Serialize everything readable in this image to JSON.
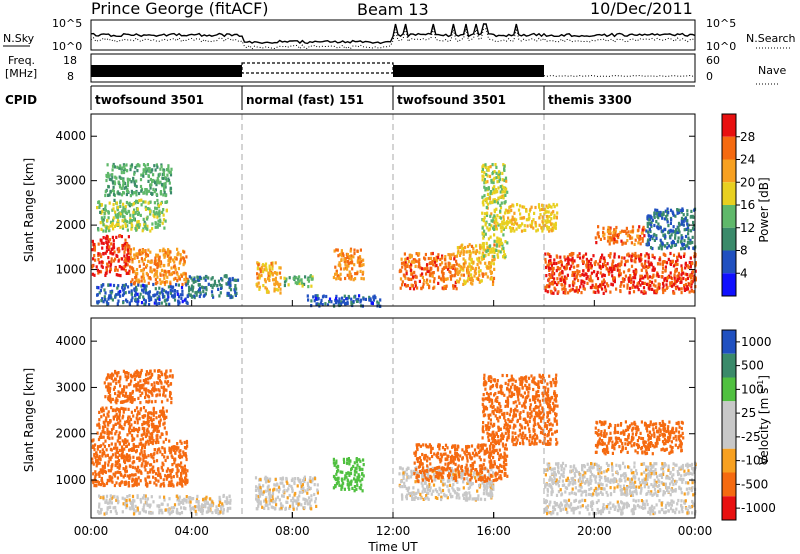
{
  "header": {
    "title": "Prince George (fitACF)",
    "beam": "Beam 13",
    "date": "10/Dec/2011"
  },
  "summary": {
    "nsky_label": "N.Sky",
    "nsearch_label": "N.Search",
    "freq_label_top": "Freq.",
    "freq_label_bottom": "[MHz]",
    "nave_label": "Nave",
    "cpid_label": "CPID",
    "nsky_ticks": [
      "10^5",
      "10^0"
    ],
    "nsearch_ticks": [
      "10^5",
      "10^0"
    ],
    "freq_ticks": [
      "18",
      "8"
    ],
    "nave_ticks": [
      "60",
      "0"
    ]
  },
  "cpid_segments": [
    {
      "label": "twofsound 3501",
      "start_hr": 0,
      "end_hr": 6
    },
    {
      "label": "normal (fast) 151",
      "start_hr": 6,
      "end_hr": 12
    },
    {
      "label": "twofsound 3501",
      "start_hr": 12,
      "end_hr": 18
    },
    {
      "label": "themis 3300",
      "start_hr": 18,
      "end_hr": 24
    }
  ],
  "colors": {
    "power_scale": [
      "#1010ff",
      "#2050c0",
      "#3a8a6a",
      "#5fb86a",
      "#e8d020",
      "#f7a020",
      "#f56a10",
      "#e81010"
    ],
    "velocity_scale": [
      "#e81010",
      "#f56a10",
      "#f7a020",
      "#c8c8c8",
      "#c8c8c8",
      "#50c040",
      "#3a8a6a",
      "#2050c0"
    ]
  },
  "chart_data": [
    {
      "type": "heatmap",
      "title": "",
      "xlabel": "",
      "ylabel": "Slant Range [km]",
      "xlim": [
        0,
        24
      ],
      "ylim": [
        180,
        4500
      ],
      "yticks": [
        "1000",
        "2000",
        "3000",
        "4000"
      ],
      "colorbar": {
        "label": "Power [dB]",
        "ticks": [
          "4",
          "8",
          "12",
          "16",
          "20",
          "24",
          "28"
        ],
        "range": [
          0,
          30
        ]
      },
      "bands": [
        {
          "x": [
            0,
            1.5
          ],
          "y": [
            900,
            1800
          ],
          "value": 27
        },
        {
          "x": [
            1.5,
            3.8
          ],
          "y": [
            700,
            1500
          ],
          "value": 22
        },
        {
          "x": [
            0.2,
            3.0
          ],
          "y": [
            1900,
            2600
          ],
          "value": 14
        },
        {
          "x": [
            0.5,
            3.2
          ],
          "y": [
            2700,
            3400
          ],
          "value": 12
        },
        {
          "x": [
            0.2,
            3.8
          ],
          "y": [
            250,
            700
          ],
          "value": 6
        },
        {
          "x": [
            3.8,
            5.8
          ],
          "y": [
            400,
            900
          ],
          "value": 8
        },
        {
          "x": [
            6.5,
            7.5
          ],
          "y": [
            500,
            1200
          ],
          "value": 20
        },
        {
          "x": [
            7.6,
            8.8
          ],
          "y": [
            650,
            900
          ],
          "value": 13
        },
        {
          "x": [
            9.6,
            10.8
          ],
          "y": [
            800,
            1500
          ],
          "value": 22
        },
        {
          "x": [
            8.5,
            11.5
          ],
          "y": [
            200,
            450
          ],
          "value": 6
        },
        {
          "x": [
            12.2,
            14.5
          ],
          "y": [
            600,
            1400
          ],
          "value": 24
        },
        {
          "x": [
            14.5,
            16.0
          ],
          "y": [
            700,
            1600
          ],
          "value": 20
        },
        {
          "x": [
            15.5,
            16.5
          ],
          "y": [
            1300,
            3400
          ],
          "value": 16
        },
        {
          "x": [
            16.5,
            18.5
          ],
          "y": [
            1900,
            2500
          ],
          "value": 18
        },
        {
          "x": [
            18.0,
            24.0
          ],
          "y": [
            500,
            1400
          ],
          "value": 26
        },
        {
          "x": [
            20.0,
            22.0
          ],
          "y": [
            1600,
            2000
          ],
          "value": 24
        },
        {
          "x": [
            22.0,
            24.0
          ],
          "y": [
            1500,
            2400
          ],
          "value": 8
        }
      ]
    },
    {
      "type": "heatmap",
      "title": "",
      "xlabel": "Time UT",
      "ylabel": "Slant Range [km]",
      "xlim": [
        0,
        24
      ],
      "ylim": [
        180,
        4500
      ],
      "xticks": [
        "00:00",
        "04:00",
        "08:00",
        "12:00",
        "16:00",
        "20:00",
        "00:00"
      ],
      "yticks": [
        "1000",
        "2000",
        "3000",
        "4000"
      ],
      "colorbar": {
        "label": "Velocity [m s^-1]",
        "ticks": [
          "1000",
          "500",
          "100",
          "25",
          "-25",
          "-100",
          "-500",
          "-1000"
        ]
      },
      "bands": [
        {
          "x": [
            0,
            3.8
          ],
          "y": [
            900,
            1900
          ],
          "value": -300
        },
        {
          "x": [
            0.2,
            3.0
          ],
          "y": [
            1900,
            2600
          ],
          "value": -150
        },
        {
          "x": [
            0.5,
            3.2
          ],
          "y": [
            2700,
            3400
          ],
          "value": -200
        },
        {
          "x": [
            0.2,
            5.5
          ],
          "y": [
            300,
            700
          ],
          "value": 0
        },
        {
          "x": [
            6.5,
            9.0
          ],
          "y": [
            400,
            1100
          ],
          "value": 0
        },
        {
          "x": [
            9.6,
            10.8
          ],
          "y": [
            800,
            1500
          ],
          "value": 150
        },
        {
          "x": [
            12.2,
            16.0
          ],
          "y": [
            600,
            1300
          ],
          "value": 0
        },
        {
          "x": [
            12.8,
            16.5
          ],
          "y": [
            1000,
            1800
          ],
          "value": -200
        },
        {
          "x": [
            15.5,
            18.5
          ],
          "y": [
            1800,
            3300
          ],
          "value": -180
        },
        {
          "x": [
            18.0,
            24.0
          ],
          "y": [
            700,
            1400
          ],
          "value": 0
        },
        {
          "x": [
            18.0,
            24.0
          ],
          "y": [
            300,
            600
          ],
          "value": 10
        },
        {
          "x": [
            20.0,
            23.5
          ],
          "y": [
            1600,
            2300
          ],
          "value": -250
        }
      ]
    }
  ]
}
